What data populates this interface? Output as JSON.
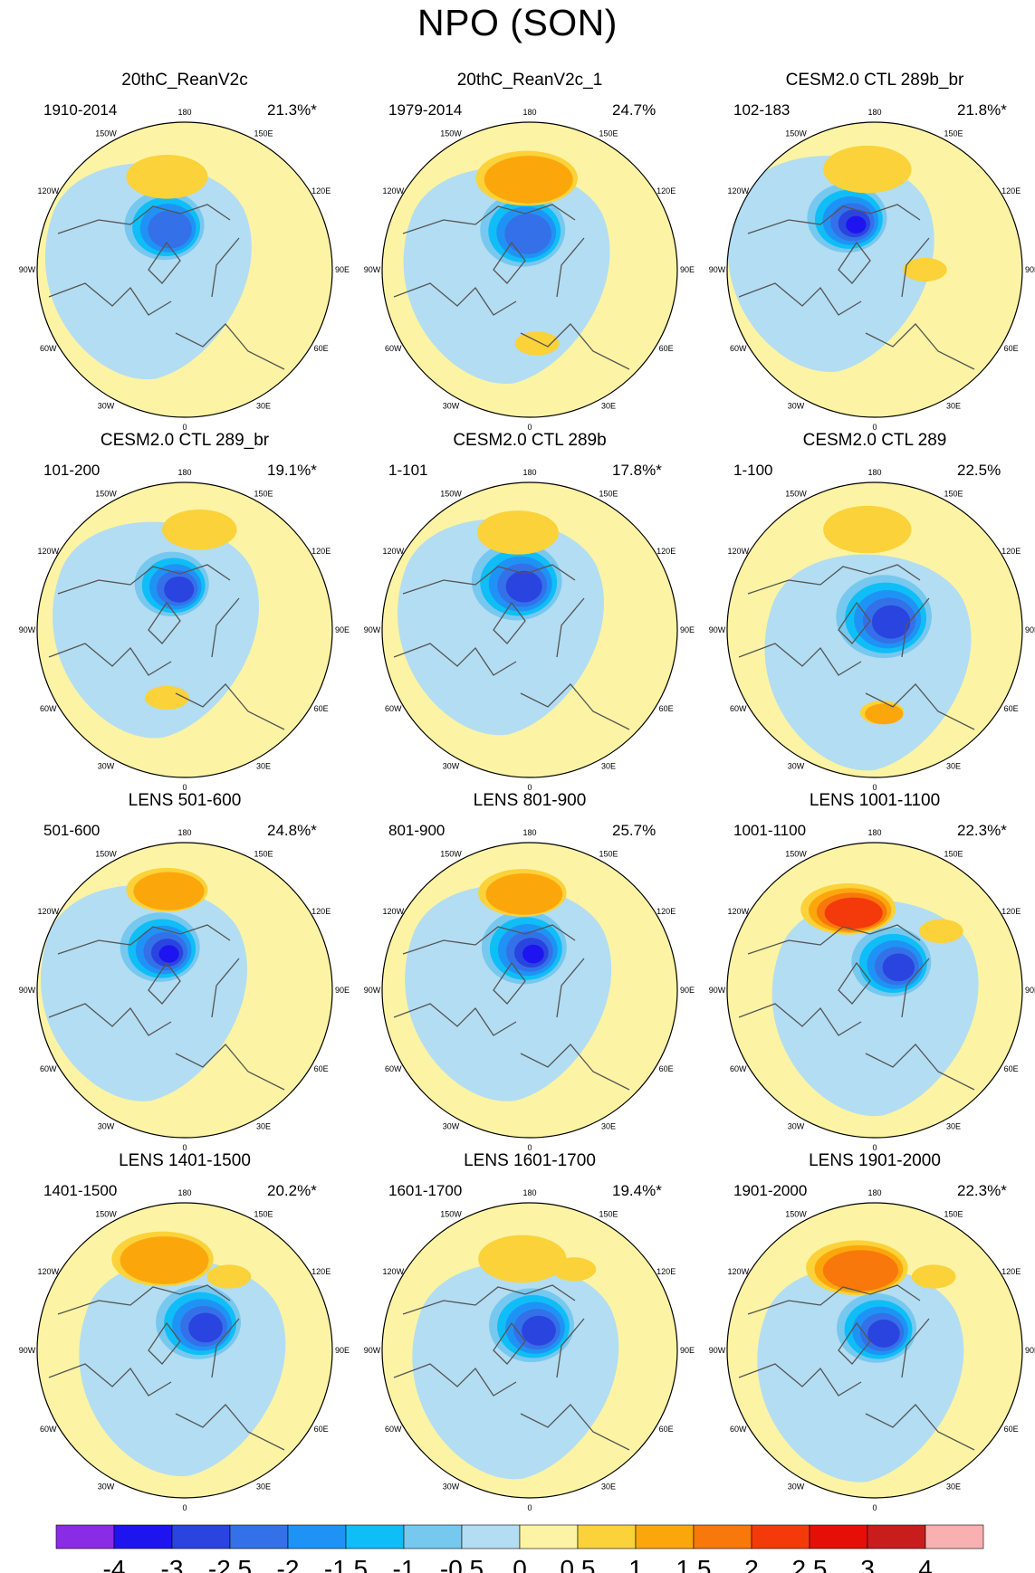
{
  "figure_title": "NPO (SON)",
  "longitude_labels": [
    "180",
    "150E",
    "120E",
    "90E",
    "60E",
    "30E",
    "0",
    "30W",
    "60W",
    "90W",
    "120W",
    "150W"
  ],
  "colorbar": {
    "labels": [
      "-4",
      "-3",
      "-2.5",
      "-2",
      "-1.5",
      "-1",
      "-0.5",
      "0",
      "0.5",
      "1",
      "1.5",
      "2",
      "2.5",
      "3",
      "4"
    ],
    "colors": [
      "#8a2be6",
      "#1e14f0",
      "#2a44e0",
      "#3471e8",
      "#1f93f5",
      "#0fbef7",
      "#77c8ef",
      "#b3ddf2",
      "#fcf4a4",
      "#fbd239",
      "#fba70c",
      "#f8780b",
      "#f43a0a",
      "#e60f07",
      "#c91d1d",
      "#f9b0b0"
    ]
  },
  "panels": [
    {
      "title": "20thC_ReanV2c",
      "period": "1910-2014",
      "variance": "21.3%*",
      "neg_center": [
        -0.15,
        0.31
      ],
      "neg_size": 0.3,
      "neg_min": -2.5,
      "pos_center": [
        -0.12,
        0.63
      ],
      "pos_size": 0.24,
      "pos_max": 1.0,
      "pos2_center": [
        0.06,
        -0.45
      ],
      "pos2_max": 0.5
    },
    {
      "title": "20thC_ReanV2c_1",
      "period": "1979-2014",
      "variance": "24.7%",
      "neg_center": [
        -0.06,
        0.28
      ],
      "neg_size": 0.32,
      "neg_min": -2.5,
      "pos_center": [
        -0.02,
        0.62
      ],
      "pos_size": 0.3,
      "pos_max": 1.5,
      "pos2_center": [
        0.05,
        -0.5
      ],
      "pos2_max": 1.0
    },
    {
      "title": "CESM2.0 CTL 289b_br",
      "period": "102-183",
      "variance": "21.8%*",
      "neg_center": [
        -0.2,
        0.36
      ],
      "neg_size": 0.3,
      "neg_min": -4.0,
      "pos_center": [
        -0.05,
        0.68
      ],
      "pos_size": 0.26,
      "pos_max": 1.0,
      "pos2_center": [
        0.34,
        0.0
      ],
      "pos2_max": 1.0
    },
    {
      "title": "CESM2.0 CTL 289_br",
      "period": "101-200",
      "variance": "19.1%*",
      "neg_center": [
        -0.1,
        0.32
      ],
      "neg_size": 0.28,
      "neg_min": -3.0,
      "pos_center": [
        0.1,
        0.68
      ],
      "pos_size": 0.22,
      "pos_max": 1.0,
      "pos2_center": [
        -0.12,
        -0.46
      ],
      "pos2_max": 1.0
    },
    {
      "title": "CESM2.0 CTL 289b",
      "period": "1-101",
      "variance": "17.8%*",
      "neg_center": [
        -0.1,
        0.34
      ],
      "neg_size": 0.34,
      "neg_min": -3.0,
      "pos_center": [
        -0.08,
        0.66
      ],
      "pos_size": 0.24,
      "pos_max": 1.0,
      "pos2_center": [
        0.0,
        -0.85
      ],
      "pos2_max": 0.5
    },
    {
      "title": "CESM2.0 CTL 289",
      "period": "1-100",
      "variance": "22.5%",
      "neg_center": [
        0.05,
        0.1
      ],
      "neg_size": 0.36,
      "neg_min": -3.0,
      "pos_center": [
        -0.05,
        0.68
      ],
      "pos_size": 0.26,
      "pos_max": 1.0,
      "pos2_center": [
        0.05,
        -0.56
      ],
      "pos2_max": 1.5
    },
    {
      "title": "LENS 501-600",
      "period": "501-600",
      "variance": "24.8%*",
      "neg_center": [
        -0.18,
        0.3
      ],
      "neg_size": 0.3,
      "neg_min": -4.0,
      "pos_center": [
        -0.12,
        0.68
      ],
      "pos_size": 0.24,
      "pos_max": 1.5,
      "pos2_center": [
        0.0,
        -0.85
      ],
      "pos2_max": 0.5
    },
    {
      "title": "LENS 801-900",
      "period": "801-900",
      "variance": "25.7%",
      "neg_center": [
        -0.05,
        0.3
      ],
      "neg_size": 0.32,
      "neg_min": -4.0,
      "pos_center": [
        -0.05,
        0.66
      ],
      "pos_size": 0.26,
      "pos_max": 1.5,
      "pos2_center": [
        0.3,
        -0.2
      ],
      "pos2_max": 0.5
    },
    {
      "title": "LENS 1001-1100",
      "period": "1001-1100",
      "variance": "22.3%*",
      "neg_center": [
        0.1,
        0.2
      ],
      "neg_size": 0.3,
      "neg_min": -3.0,
      "pos_center": [
        -0.18,
        0.55
      ],
      "pos_size": 0.28,
      "pos_max": 2.5,
      "pos2_center": [
        0.45,
        0.4
      ],
      "pos2_max": 1.0
    },
    {
      "title": "LENS 1401-1500",
      "period": "1401-1500",
      "variance": "20.2%*",
      "neg_center": [
        0.08,
        0.2
      ],
      "neg_size": 0.32,
      "neg_min": -3.0,
      "pos_center": [
        -0.15,
        0.62
      ],
      "pos_size": 0.3,
      "pos_max": 1.5,
      "pos2_center": [
        0.3,
        0.5
      ],
      "pos2_max": 1.0
    },
    {
      "title": "LENS 1601-1700",
      "period": "1601-1700",
      "variance": "19.4%*",
      "neg_center": [
        0.0,
        0.18
      ],
      "neg_size": 0.32,
      "neg_min": -3.0,
      "pos_center": [
        -0.05,
        0.62
      ],
      "pos_size": 0.26,
      "pos_max": 1.0,
      "pos2_center": [
        0.3,
        0.55
      ],
      "pos2_max": 1.0
    },
    {
      "title": "LENS 1901-2000",
      "period": "1901-2000",
      "variance": "22.3%*",
      "neg_center": [
        0.0,
        0.16
      ],
      "neg_size": 0.3,
      "neg_min": -3.0,
      "pos_center": [
        -0.12,
        0.56
      ],
      "pos_size": 0.3,
      "pos_max": 2.0,
      "pos2_center": [
        0.4,
        0.5
      ],
      "pos2_max": 1.0
    }
  ]
}
